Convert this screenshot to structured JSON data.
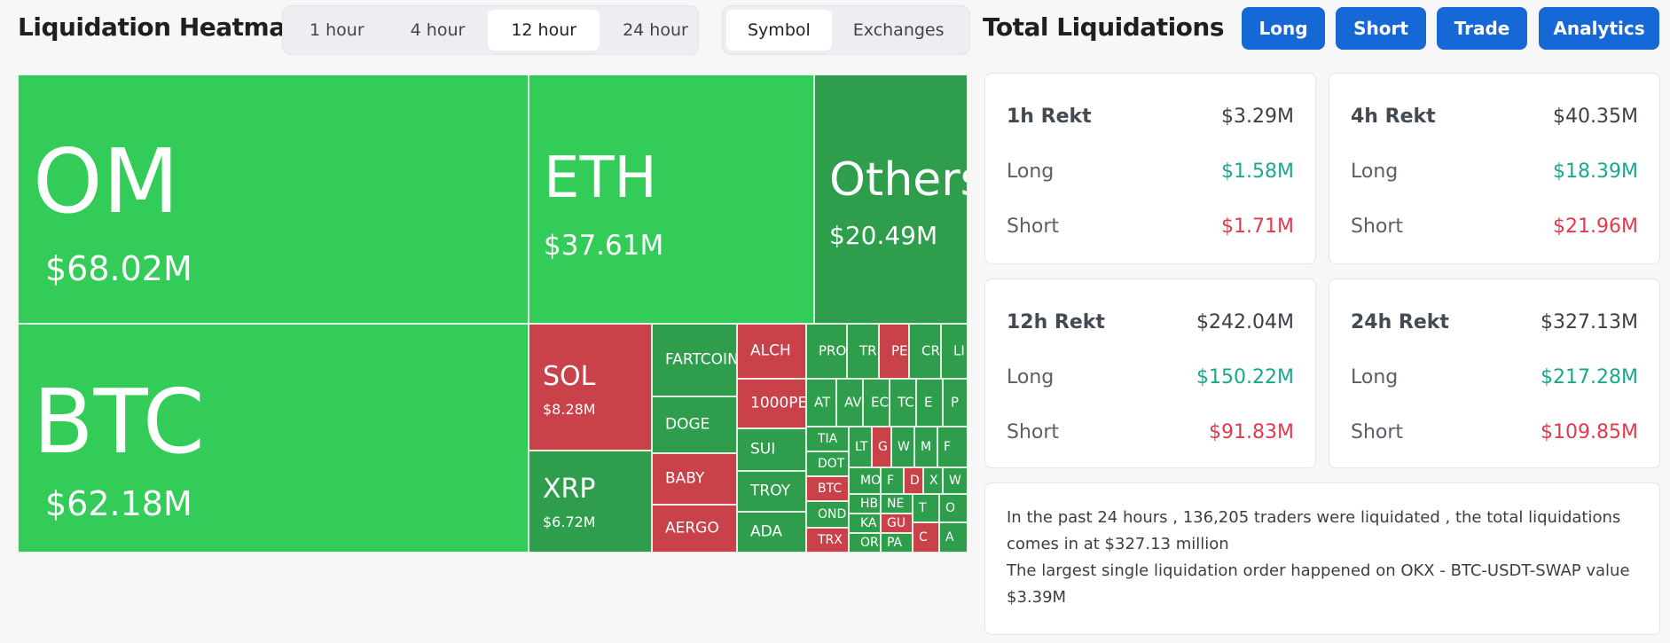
{
  "header": {
    "title": "Liquidation Heatmap",
    "time_options": [
      "1 hour",
      "4 hour",
      "12 hour",
      "24 hour"
    ],
    "time_selected": "12 hour",
    "mode_options": [
      "Symbol",
      "Exchanges"
    ],
    "mode_selected": "Symbol",
    "total_title": "Total Liquidations",
    "buttons": [
      "Long",
      "Short",
      "Trade",
      "Analytics"
    ]
  },
  "colors": {
    "bright_green": "#33cc59",
    "dark_green": "#2f9e4c",
    "red": "#c9424a",
    "button_blue": "#1668d6",
    "long_text": "#1aa88c",
    "short_text": "#e03a4e"
  },
  "treemap": {
    "large": [
      {
        "symbol": "OM",
        "value": "$68.02M",
        "color": "bright_green"
      },
      {
        "symbol": "ETH",
        "value": "$37.61M",
        "color": "bright_green"
      },
      {
        "symbol": "Others",
        "value": "$20.49M",
        "color": "dark_green"
      },
      {
        "symbol": "BTC",
        "value": "$62.18M",
        "color": "bright_green"
      },
      {
        "symbol": "SOL",
        "value": "$8.28M",
        "color": "red"
      },
      {
        "symbol": "XRP",
        "value": "$6.72M",
        "color": "dark_green"
      }
    ],
    "small": [
      {
        "symbol": "FARTCOIN",
        "color": "dark_green"
      },
      {
        "symbol": "DOGE",
        "color": "dark_green"
      },
      {
        "symbol": "BABY",
        "color": "red"
      },
      {
        "symbol": "AERGO",
        "color": "red"
      },
      {
        "symbol": "ALCH",
        "color": "red"
      },
      {
        "symbol": "1000PE",
        "color": "red"
      },
      {
        "symbol": "SUI",
        "color": "dark_green"
      },
      {
        "symbol": "TROY",
        "color": "dark_green"
      },
      {
        "symbol": "ADA",
        "color": "dark_green"
      },
      {
        "symbol": "PRO",
        "color": "dark_green"
      },
      {
        "symbol": "TR",
        "color": "dark_green"
      },
      {
        "symbol": "PE",
        "color": "red"
      },
      {
        "symbol": "CR",
        "color": "dark_green"
      },
      {
        "symbol": "LI",
        "color": "dark_green"
      },
      {
        "symbol": "AT",
        "color": "dark_green"
      },
      {
        "symbol": "AV",
        "color": "dark_green"
      },
      {
        "symbol": "EC",
        "color": "dark_green"
      },
      {
        "symbol": "TC",
        "color": "dark_green"
      },
      {
        "symbol": "E",
        "color": "dark_green"
      },
      {
        "symbol": "P",
        "color": "dark_green"
      },
      {
        "symbol": "TIA",
        "color": "dark_green"
      },
      {
        "symbol": "LT",
        "color": "dark_green"
      },
      {
        "symbol": "G",
        "color": "red"
      },
      {
        "symbol": "W",
        "color": "dark_green"
      },
      {
        "symbol": "M",
        "color": "dark_green"
      },
      {
        "symbol": "F",
        "color": "dark_green"
      },
      {
        "symbol": "DOT",
        "color": "dark_green"
      },
      {
        "symbol": "MO",
        "color": "dark_green"
      },
      {
        "symbol": "F",
        "color": "dark_green"
      },
      {
        "symbol": "D",
        "color": "red"
      },
      {
        "symbol": "X",
        "color": "dark_green"
      },
      {
        "symbol": "W",
        "color": "dark_green"
      },
      {
        "symbol": "BTC",
        "color": "red"
      },
      {
        "symbol": "HB",
        "color": "dark_green"
      },
      {
        "symbol": "NE",
        "color": "dark_green"
      },
      {
        "symbol": "T",
        "color": "dark_green"
      },
      {
        "symbol": "O",
        "color": "dark_green"
      },
      {
        "symbol": "OND",
        "color": "dark_green"
      },
      {
        "symbol": "KA",
        "color": "dark_green"
      },
      {
        "symbol": "GU",
        "color": "red"
      },
      {
        "symbol": "C",
        "color": "red"
      },
      {
        "symbol": "A",
        "color": "dark_green"
      },
      {
        "symbol": "TRX",
        "color": "red"
      },
      {
        "symbol": "OR",
        "color": "dark_green"
      },
      {
        "symbol": "PA",
        "color": "dark_green"
      }
    ]
  },
  "cards": [
    {
      "period": "1h Rekt",
      "total": "$3.29M",
      "long_label": "Long",
      "long": "$1.58M",
      "short_label": "Short",
      "short": "$1.71M"
    },
    {
      "period": "4h Rekt",
      "total": "$40.35M",
      "long_label": "Long",
      "long": "$18.39M",
      "short_label": "Short",
      "short": "$21.96M"
    },
    {
      "period": "12h Rekt",
      "total": "$242.04M",
      "long_label": "Long",
      "long": "$150.22M",
      "short_label": "Short",
      "short": "$91.83M"
    },
    {
      "period": "24h Rekt",
      "total": "$327.13M",
      "long_label": "Long",
      "long": "$217.28M",
      "short_label": "Short",
      "short": "$109.85M"
    }
  ],
  "summary": {
    "line1": "In the past 24 hours , 136,205 traders were liquidated , the total liquidations comes in at $327.13 million",
    "line2": "The largest single liquidation order happened on OKX - BTC-USDT-SWAP value $3.39M"
  }
}
